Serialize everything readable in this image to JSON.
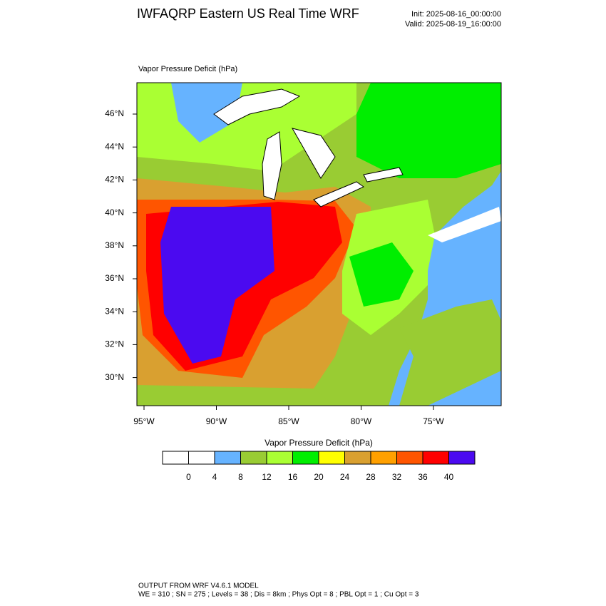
{
  "header": {
    "title": "IWFAQRP Eastern US Real Time WRF",
    "init": "Init: 2025-08-16_00:00:00",
    "valid": "Valid: 2025-08-19_16:00:00"
  },
  "map": {
    "field_label": "Vapor Pressure Deficit   (hPa)",
    "lat_ticks": [
      {
        "value": 46,
        "label": "46°N"
      },
      {
        "value": 44,
        "label": "44°N"
      },
      {
        "value": 42,
        "label": "42°N"
      },
      {
        "value": 40,
        "label": "40°N"
      },
      {
        "value": 38,
        "label": "38°N"
      },
      {
        "value": 36,
        "label": "36°N"
      },
      {
        "value": 34,
        "label": "34°N"
      },
      {
        "value": 32,
        "label": "32°N"
      },
      {
        "value": 30,
        "label": "30°N"
      }
    ],
    "lon_ticks": [
      {
        "value": -95,
        "label": "95°W"
      },
      {
        "value": -90,
        "label": "90°W"
      },
      {
        "value": -85,
        "label": "85°W"
      },
      {
        "value": -80,
        "label": "80°W"
      },
      {
        "value": -75,
        "label": "75°W"
      }
    ]
  },
  "colorbar": {
    "title": "Vapor Pressure Deficit  (hPa)",
    "colors": [
      "#ffffff",
      "#ffffff",
      "#66b3ff",
      "#99cc33",
      "#aaff33",
      "#00ee00",
      "#ffff00",
      "#d9a030",
      "#ffa000",
      "#ff5500",
      "#ff0000",
      "#4b0af0"
    ],
    "levels": [
      0,
      4,
      8,
      12,
      16,
      20,
      24,
      28,
      32,
      36,
      40
    ]
  },
  "footer": {
    "line1": "OUTPUT FROM WRF V4.6.1 MODEL",
    "line2": "WE = 310 ; SN = 275 ; Levels = 38 ; Dis = 8km ; Phys Opt = 8 ; PBL Opt = 1 ; Cu Opt = 3"
  }
}
